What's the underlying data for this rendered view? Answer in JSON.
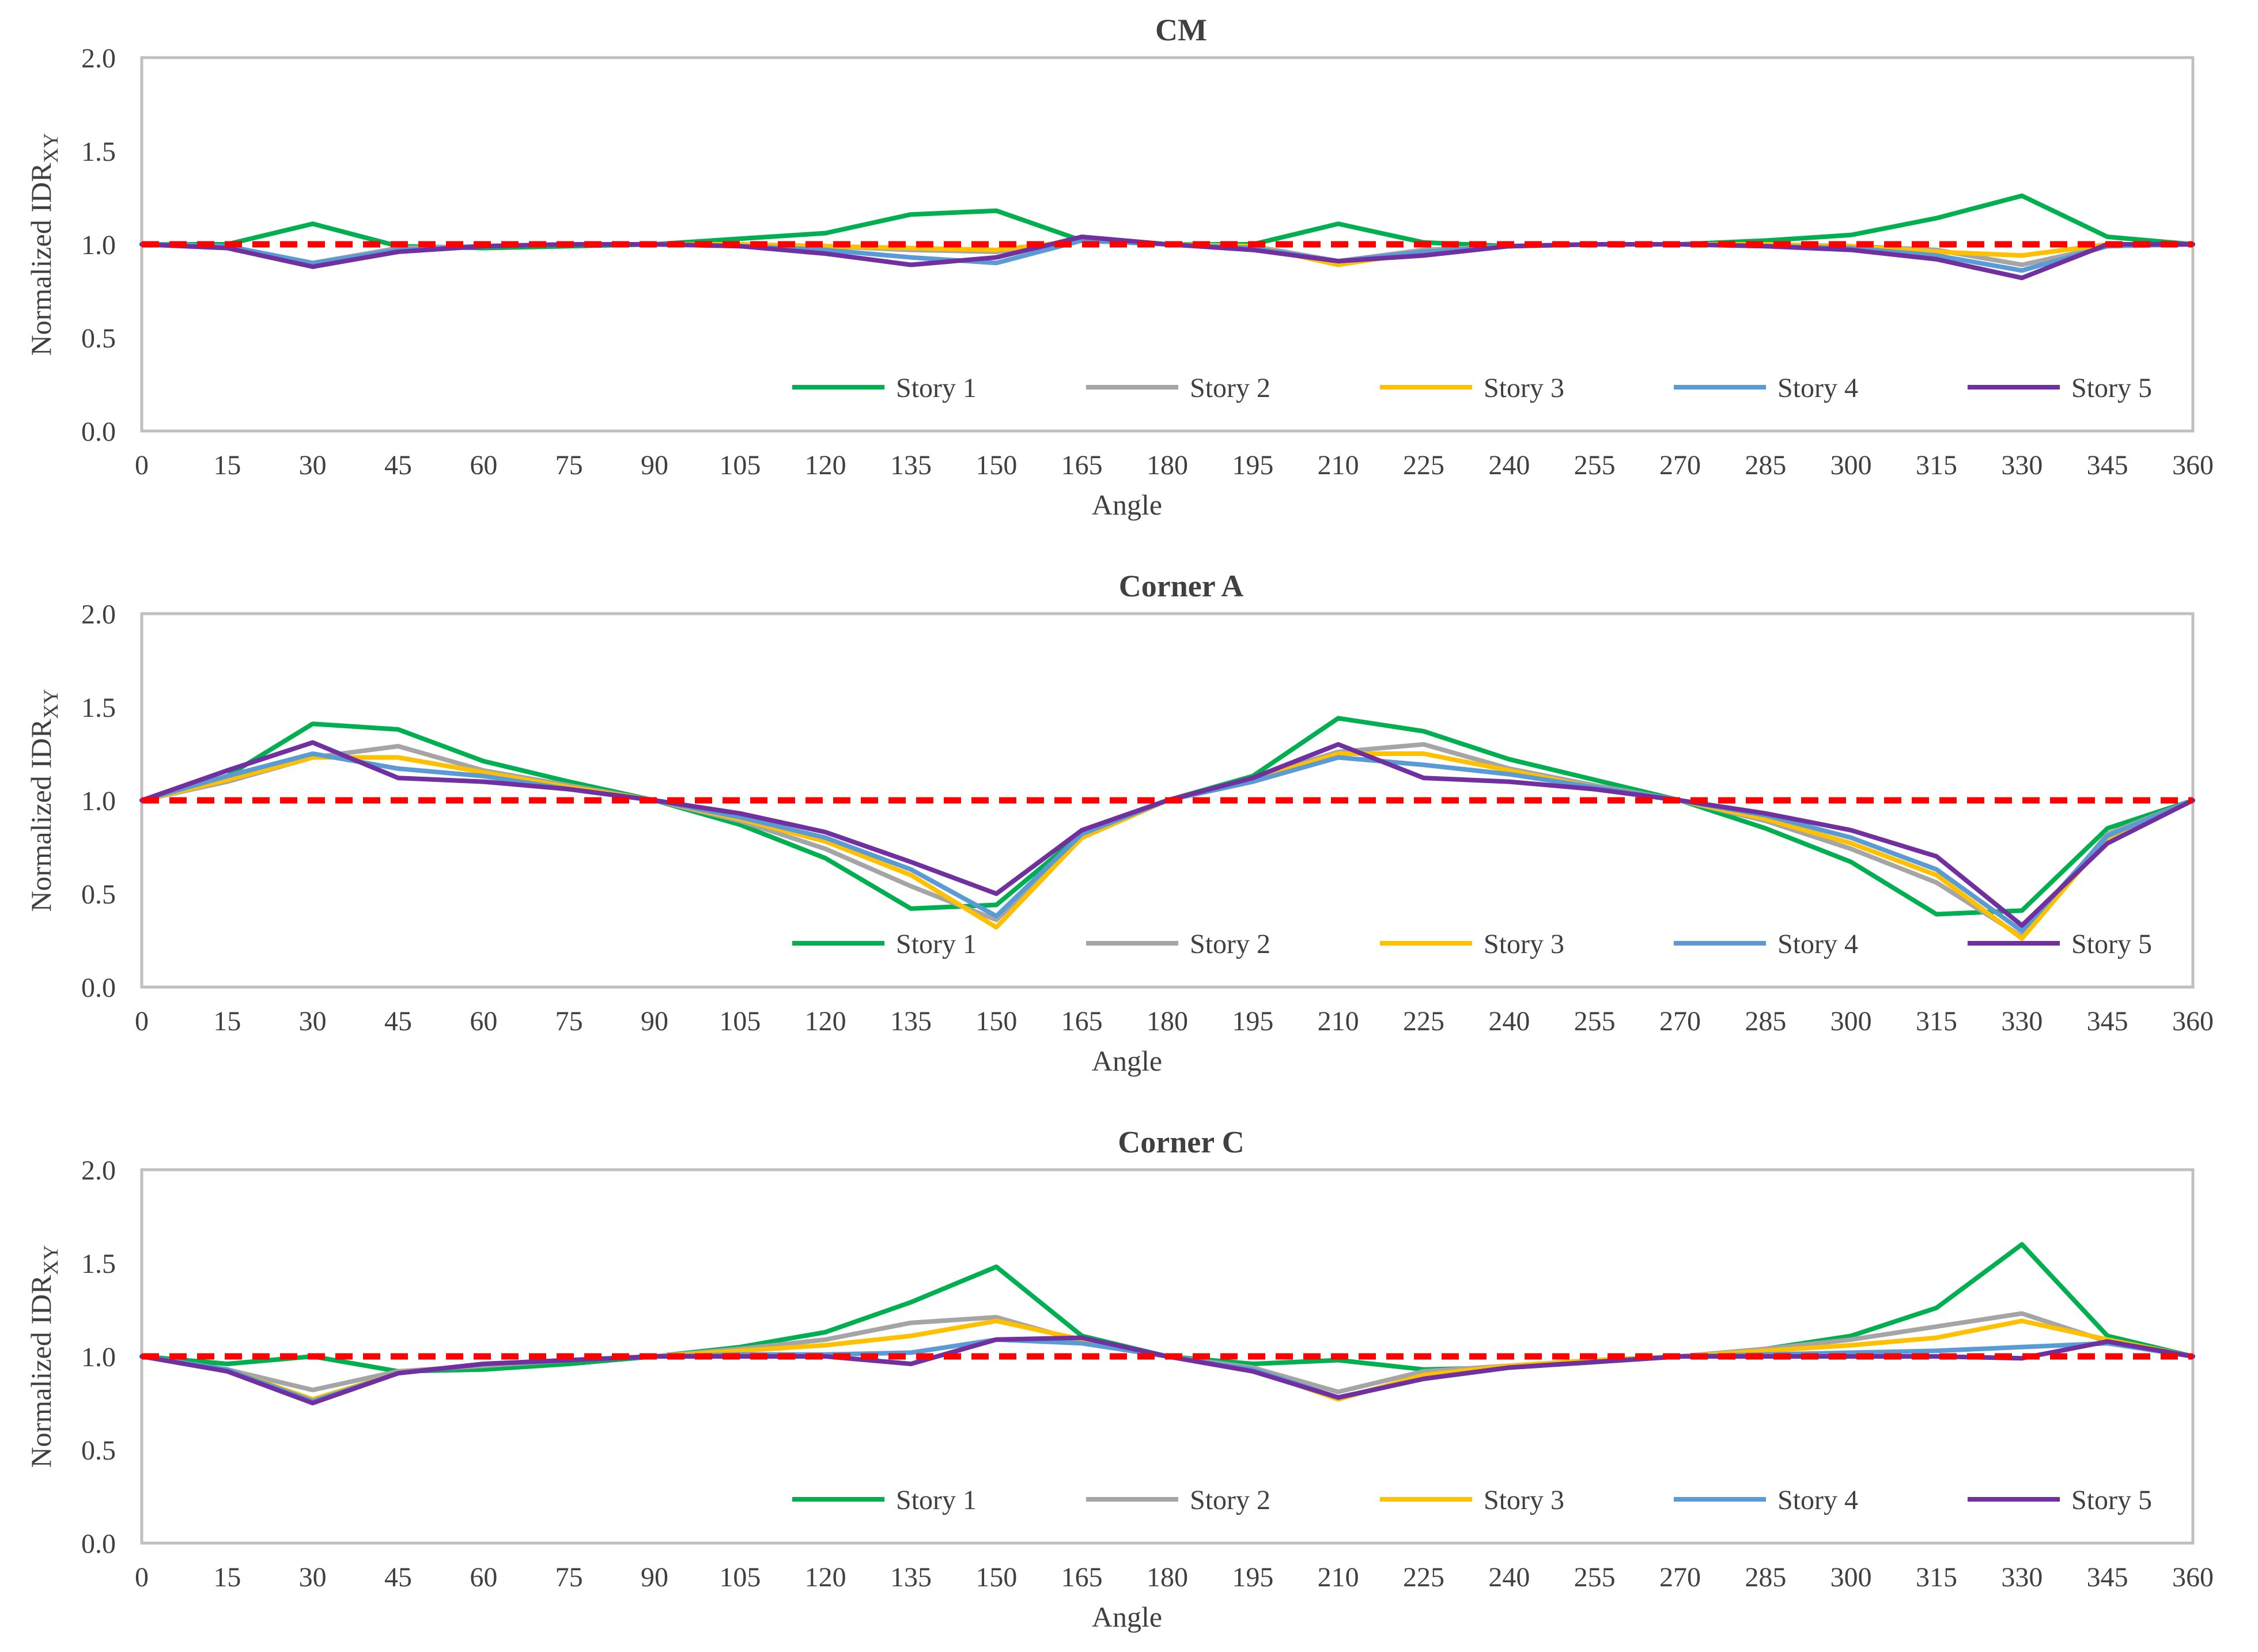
{
  "figure": {
    "background": "#ffffff"
  },
  "series_colors": {
    "Story 1": "#00b050",
    "Story 2": "#a5a5a5",
    "Story 3": "#ffc000",
    "Story 4": "#5b9bd5",
    "Story 5": "#7030a0",
    "reference": "#ff0000"
  },
  "chart_data": [
    {
      "type": "line",
      "title": "CM",
      "xlabel": "Angle",
      "ylabel_main": "Normalized IDR",
      "ylabel_sub": "XY",
      "x": [
        0,
        15,
        30,
        45,
        60,
        75,
        90,
        105,
        120,
        135,
        150,
        165,
        180,
        195,
        210,
        225,
        240,
        255,
        270,
        285,
        300,
        315,
        330,
        345,
        360
      ],
      "xticks": [
        "0",
        "15",
        "30",
        "45",
        "60",
        "75",
        "90",
        "105",
        "120",
        "135",
        "150",
        "165",
        "180",
        "195",
        "210",
        "225",
        "240",
        "255",
        "270",
        "285",
        "300",
        "315",
        "330",
        "345",
        "360"
      ],
      "xlim": [
        0,
        360
      ],
      "ylim": [
        0,
        2
      ],
      "yticks": [
        "0.0",
        "0.5",
        "1.0",
        "1.5",
        "2.0"
      ],
      "reference_line": 1.0,
      "series": [
        {
          "name": "Story 1",
          "values": [
            1.0,
            1.0,
            1.11,
            0.99,
            0.98,
            0.99,
            1.0,
            1.03,
            1.06,
            1.16,
            1.18,
            1.02,
            1.0,
            1.0,
            1.11,
            1.01,
            0.99,
            1.0,
            1.0,
            1.02,
            1.05,
            1.14,
            1.26,
            1.04,
            1.0
          ]
        },
        {
          "name": "Story 2",
          "values": [
            1.0,
            0.99,
            0.9,
            0.98,
            0.99,
            1.0,
            1.0,
            1.0,
            0.99,
            0.97,
            0.96,
            1.02,
            1.0,
            0.99,
            0.91,
            0.97,
            0.99,
            1.0,
            1.0,
            1.0,
            0.99,
            0.97,
            0.89,
            0.99,
            1.0
          ]
        },
        {
          "name": "Story 3",
          "values": [
            1.0,
            0.99,
            0.89,
            0.97,
            0.99,
            1.0,
            1.0,
            1.0,
            0.99,
            0.98,
            0.97,
            1.02,
            1.0,
            0.99,
            0.89,
            0.96,
            0.99,
            1.0,
            1.0,
            1.0,
            0.99,
            0.96,
            0.94,
            1.0,
            1.0
          ]
        },
        {
          "name": "Story 4",
          "values": [
            1.0,
            0.99,
            0.9,
            0.97,
            0.99,
            1.0,
            1.0,
            0.99,
            0.97,
            0.93,
            0.9,
            1.02,
            1.0,
            0.98,
            0.91,
            0.96,
            0.99,
            1.0,
            1.0,
            0.99,
            0.98,
            0.94,
            0.86,
            0.99,
            1.0
          ]
        },
        {
          "name": "Story 5",
          "values": [
            1.0,
            0.98,
            0.88,
            0.96,
            0.99,
            1.0,
            1.0,
            0.99,
            0.95,
            0.89,
            0.93,
            1.04,
            1.0,
            0.97,
            0.91,
            0.94,
            0.99,
            1.0,
            1.0,
            0.99,
            0.97,
            0.92,
            0.82,
            1.0,
            1.0
          ]
        }
      ]
    },
    {
      "type": "line",
      "title": "Corner A",
      "xlabel": "Angle",
      "ylabel_main": "Normalized IDR",
      "ylabel_sub": "XY",
      "x": [
        0,
        15,
        30,
        45,
        60,
        75,
        90,
        105,
        120,
        135,
        150,
        165,
        180,
        195,
        210,
        225,
        240,
        255,
        270,
        285,
        300,
        315,
        330,
        345,
        360
      ],
      "xticks": [
        "0",
        "15",
        "30",
        "45",
        "60",
        "75",
        "90",
        "105",
        "120",
        "135",
        "150",
        "165",
        "180",
        "195",
        "210",
        "225",
        "240",
        "255",
        "270",
        "285",
        "300",
        "315",
        "330",
        "345",
        "360"
      ],
      "xlim": [
        0,
        360
      ],
      "ylim": [
        0,
        2
      ],
      "yticks": [
        "0.0",
        "0.5",
        "1.0",
        "1.5",
        "2.0"
      ],
      "reference_line": 1.0,
      "series": [
        {
          "name": "Story 1",
          "values": [
            1.0,
            1.13,
            1.41,
            1.38,
            1.21,
            1.1,
            1.0,
            0.87,
            0.69,
            0.42,
            0.44,
            0.82,
            1.0,
            1.13,
            1.44,
            1.37,
            1.22,
            1.11,
            1.0,
            0.85,
            0.67,
            0.39,
            0.41,
            0.85,
            1.0
          ]
        },
        {
          "name": "Story 2",
          "values": [
            1.0,
            1.1,
            1.23,
            1.29,
            1.16,
            1.08,
            1.0,
            0.89,
            0.74,
            0.54,
            0.36,
            0.8,
            1.0,
            1.12,
            1.26,
            1.3,
            1.17,
            1.08,
            1.0,
            0.89,
            0.74,
            0.56,
            0.27,
            0.82,
            1.0
          ]
        },
        {
          "name": "Story 3",
          "values": [
            1.0,
            1.11,
            1.23,
            1.23,
            1.15,
            1.07,
            1.0,
            0.9,
            0.78,
            0.6,
            0.32,
            0.8,
            1.0,
            1.11,
            1.25,
            1.25,
            1.16,
            1.07,
            1.0,
            0.9,
            0.77,
            0.6,
            0.26,
            0.8,
            1.0
          ]
        },
        {
          "name": "Story 4",
          "values": [
            1.0,
            1.13,
            1.25,
            1.17,
            1.13,
            1.06,
            1.0,
            0.91,
            0.8,
            0.63,
            0.38,
            0.82,
            1.0,
            1.1,
            1.23,
            1.19,
            1.14,
            1.07,
            1.0,
            0.92,
            0.8,
            0.63,
            0.3,
            0.81,
            1.0
          ]
        },
        {
          "name": "Story 5",
          "values": [
            1.0,
            1.16,
            1.31,
            1.12,
            1.1,
            1.06,
            1.0,
            0.93,
            0.83,
            0.67,
            0.5,
            0.84,
            1.0,
            1.12,
            1.3,
            1.12,
            1.1,
            1.06,
            1.0,
            0.93,
            0.84,
            0.7,
            0.33,
            0.77,
            1.0
          ]
        }
      ]
    },
    {
      "type": "line",
      "title": "Corner C",
      "xlabel": "Angle",
      "ylabel_main": "Normalized IDR",
      "ylabel_sub": "XY",
      "x": [
        0,
        15,
        30,
        45,
        60,
        75,
        90,
        105,
        120,
        135,
        150,
        165,
        180,
        195,
        210,
        225,
        240,
        255,
        270,
        285,
        300,
        315,
        330,
        345,
        360
      ],
      "xticks": [
        "0",
        "15",
        "30",
        "45",
        "60",
        "75",
        "90",
        "105",
        "120",
        "135",
        "150",
        "165",
        "180",
        "195",
        "210",
        "225",
        "240",
        "255",
        "270",
        "285",
        "300",
        "315",
        "330",
        "345",
        "360"
      ],
      "xlim": [
        0,
        360
      ],
      "ylim": [
        0,
        2
      ],
      "yticks": [
        "0.0",
        "0.5",
        "1.0",
        "1.5",
        "2.0"
      ],
      "reference_line": 1.0,
      "series": [
        {
          "name": "Story 1",
          "values": [
            1.0,
            0.96,
            1.0,
            0.92,
            0.93,
            0.96,
            1.0,
            1.05,
            1.13,
            1.29,
            1.48,
            1.11,
            1.0,
            0.96,
            0.98,
            0.93,
            0.94,
            0.97,
            1.0,
            1.04,
            1.11,
            1.26,
            1.6,
            1.11,
            1.0
          ]
        },
        {
          "name": "Story 2",
          "values": [
            1.0,
            0.93,
            0.82,
            0.92,
            0.95,
            0.98,
            1.0,
            1.04,
            1.09,
            1.18,
            1.21,
            1.08,
            1.0,
            0.94,
            0.81,
            0.92,
            0.95,
            0.98,
            1.0,
            1.04,
            1.09,
            1.16,
            1.23,
            1.08,
            1.0
          ]
        },
        {
          "name": "Story 3",
          "values": [
            1.0,
            0.93,
            0.77,
            0.91,
            0.96,
            0.98,
            1.0,
            1.03,
            1.06,
            1.11,
            1.19,
            1.09,
            1.0,
            0.93,
            0.77,
            0.9,
            0.95,
            0.98,
            1.0,
            1.03,
            1.06,
            1.1,
            1.19,
            1.09,
            1.0
          ]
        },
        {
          "name": "Story 4",
          "values": [
            1.0,
            0.93,
            0.76,
            0.91,
            0.96,
            0.98,
            1.0,
            1.01,
            1.01,
            1.02,
            1.09,
            1.07,
            1.0,
            0.93,
            0.78,
            0.88,
            0.94,
            0.97,
            1.0,
            1.01,
            1.02,
            1.03,
            1.05,
            1.07,
            1.0
          ]
        },
        {
          "name": "Story 5",
          "values": [
            1.0,
            0.92,
            0.75,
            0.91,
            0.96,
            0.98,
            1.0,
            1.0,
            1.0,
            0.96,
            1.09,
            1.1,
            1.0,
            0.92,
            0.78,
            0.88,
            0.94,
            0.97,
            1.0,
            1.0,
            1.0,
            1.0,
            0.99,
            1.08,
            1.0
          ]
        }
      ]
    }
  ]
}
